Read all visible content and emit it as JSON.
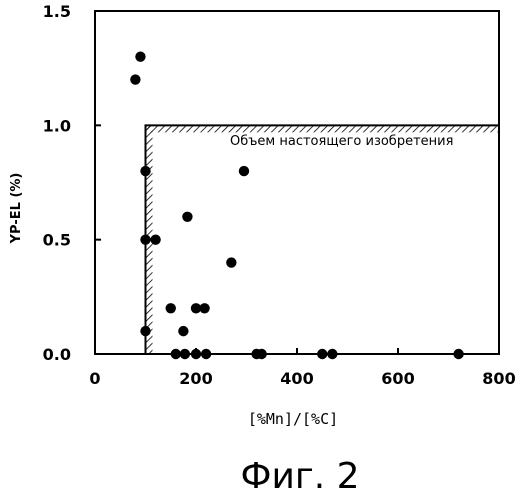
{
  "chart_data": {
    "type": "scatter",
    "xlabel": "[%Mn]/[%C]",
    "ylabel": "YP-EL (%)",
    "xlim": [
      0,
      800
    ],
    "ylim": [
      0,
      1.5
    ],
    "x_ticks": [
      "0",
      "200",
      "400",
      "600",
      "800"
    ],
    "y_ticks": [
      "0.0",
      "0.5",
      "1.0",
      "1.5"
    ],
    "grid": false,
    "region_label": "Объем настоящего изобретения",
    "region": {
      "x_min": 100,
      "y_max": 1.0
    },
    "caption": "Фиг. 2",
    "points": [
      {
        "x": 80,
        "y": 1.2
      },
      {
        "x": 90,
        "y": 1.3
      },
      {
        "x": 100,
        "y": 0.8
      },
      {
        "x": 100,
        "y": 0.5
      },
      {
        "x": 100,
        "y": 0.1
      },
      {
        "x": 120,
        "y": 0.5
      },
      {
        "x": 150,
        "y": 0.2
      },
      {
        "x": 160,
        "y": 0.0
      },
      {
        "x": 175,
        "y": 0.1
      },
      {
        "x": 178,
        "y": 0.0
      },
      {
        "x": 183,
        "y": 0.6
      },
      {
        "x": 200,
        "y": 0.2
      },
      {
        "x": 200,
        "y": 0.0
      },
      {
        "x": 217,
        "y": 0.2
      },
      {
        "x": 220,
        "y": 0.0
      },
      {
        "x": 270,
        "y": 0.4
      },
      {
        "x": 295,
        "y": 0.8
      },
      {
        "x": 320,
        "y": 0.0
      },
      {
        "x": 330,
        "y": 0.0
      },
      {
        "x": 450,
        "y": 0.0
      },
      {
        "x": 470,
        "y": 0.0
      },
      {
        "x": 720,
        "y": 0.0
      }
    ]
  }
}
